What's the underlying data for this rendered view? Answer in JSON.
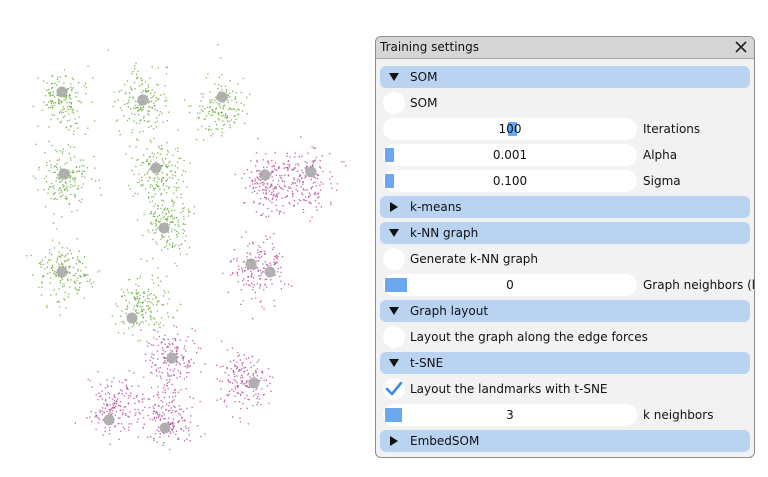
{
  "window": {
    "title": "Training settings"
  },
  "sections": {
    "som": "SOM",
    "kmeans": "k-means",
    "knn": "k-NN graph",
    "graph_layout": "Graph layout",
    "tsne": "t-SNE",
    "embedsom": "EmbedSOM"
  },
  "som": {
    "toggle_label": "SOM",
    "iterations": {
      "value": "100",
      "label": "Iterations"
    },
    "alpha": {
      "value": "0.001",
      "label": "Alpha"
    },
    "sigma": {
      "value": "0.100",
      "label": "Sigma"
    }
  },
  "knn": {
    "toggle_label": "Generate k-NN graph",
    "neighbors": {
      "value": "0",
      "label": "Graph neighbors (k)"
    }
  },
  "graph_layout": {
    "toggle_label": "Layout the graph along the edge forces"
  },
  "tsne": {
    "toggle_label": "Layout the landmarks with t-SNE",
    "neighbors": {
      "value": "3",
      "label": "k neighbors"
    }
  },
  "colors": {
    "section": "#b9d3f1",
    "slider_fill": "#6aa9ef",
    "check": "#3c8ce6",
    "green_points": "#6aaa3a",
    "magenta_points": "#b0489a",
    "landmark": "#a8a8a8"
  },
  "icons": {
    "close": "close-icon",
    "expanded": "triangle-down-icon",
    "collapsed": "triangle-right-icon",
    "check": "checkmark-icon"
  }
}
